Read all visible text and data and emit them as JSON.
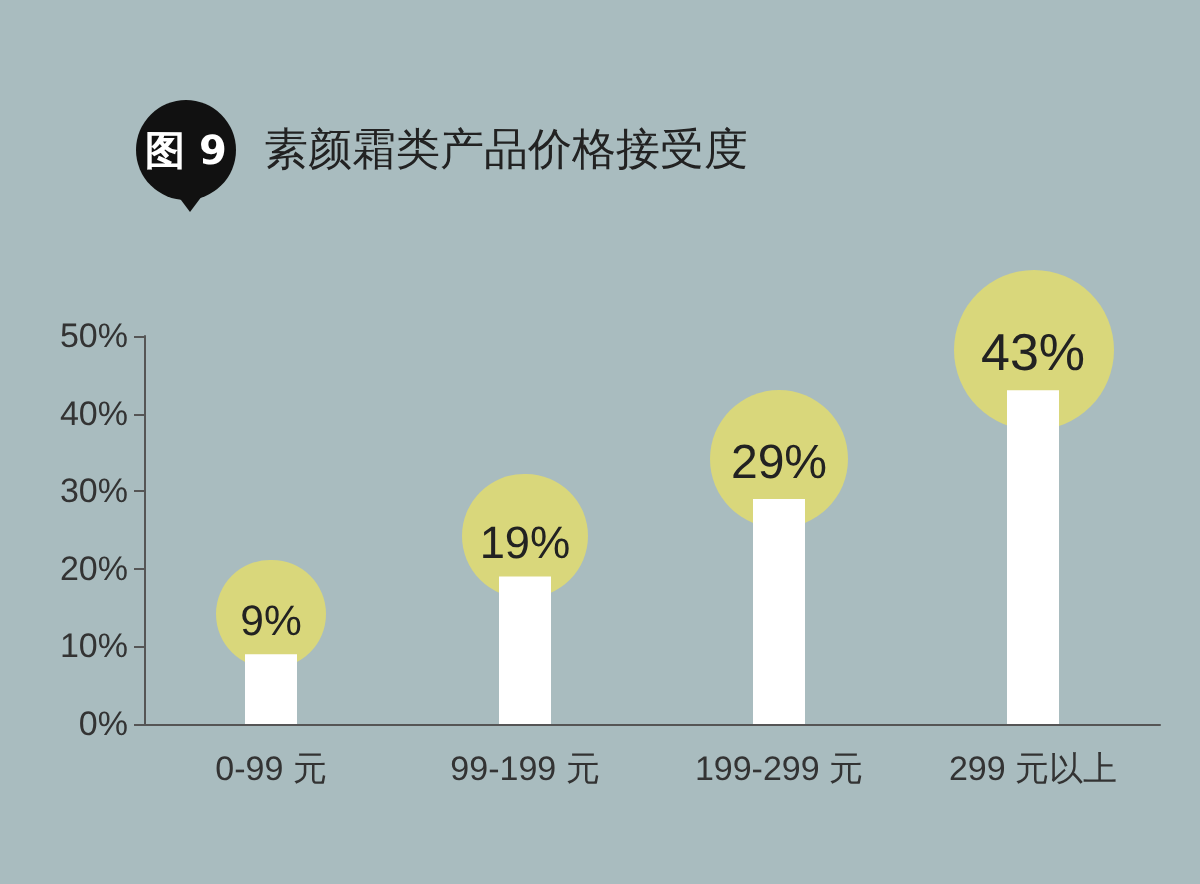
{
  "chart_data": {
    "type": "bar",
    "title": "素颜霜类产品价格接受度",
    "annotations": [
      "图 9"
    ],
    "categories": [
      "0-99 元",
      "99-199 元",
      "199-299 元",
      "299 元以上"
    ],
    "values": [
      9,
      19,
      29,
      43
    ],
    "color": "#ffffff",
    "value_labels": [
      "9%",
      "19%",
      "29%",
      "43%"
    ],
    "ylim": [
      0,
      50
    ],
    "yticks": [
      {
        "value": 0,
        "label": "0%"
      },
      {
        "value": 10,
        "label": "10%"
      },
      {
        "value": 20,
        "label": "20%"
      },
      {
        "value": 30,
        "label": "30%"
      },
      {
        "value": 40,
        "label": "40%"
      },
      {
        "value": 50,
        "label": "50%"
      }
    ],
    "grid": false
  }
}
